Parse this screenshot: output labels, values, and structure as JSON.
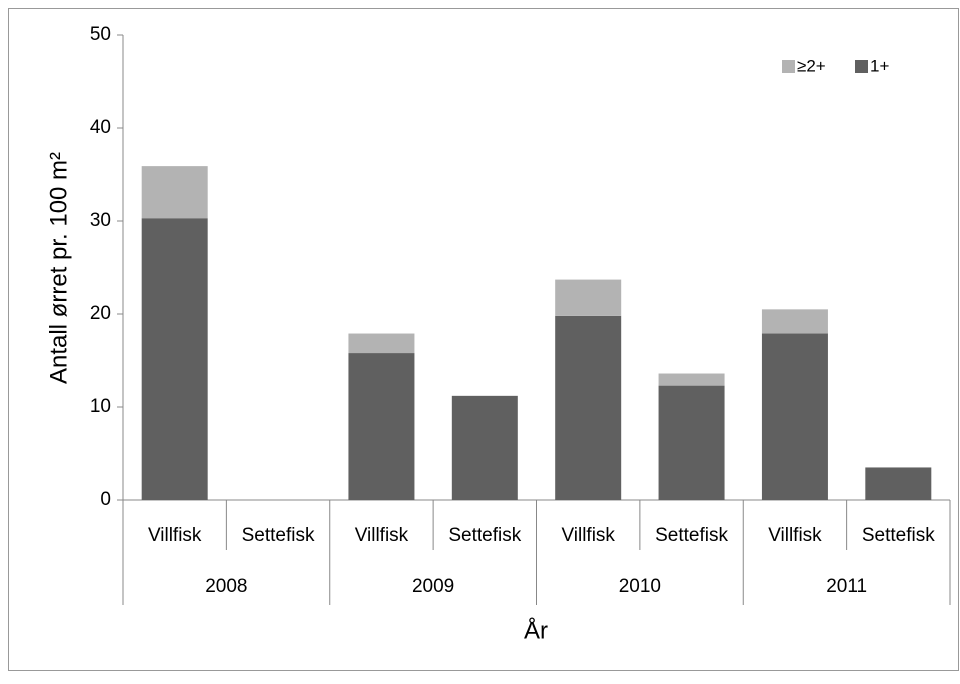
{
  "chart_data": {
    "type": "stacked-bar",
    "categories": [
      "Villfisk",
      "Settefisk",
      "Villfisk",
      "Settefisk",
      "Villfisk",
      "Settefisk",
      "Villfisk",
      "Settefisk"
    ],
    "groups": [
      "2008",
      "2009",
      "2010",
      "2011"
    ],
    "series": [
      {
        "name": "1+",
        "color": "#606060",
        "values": [
          30.3,
          0,
          15.8,
          11.2,
          19.8,
          12.3,
          17.9,
          3.5
        ]
      },
      {
        "name": "≥2+",
        "color": "#b3b3b3",
        "values": [
          5.6,
          0,
          2.1,
          0,
          3.9,
          1.3,
          2.6,
          0
        ]
      }
    ],
    "ylim": [
      0,
      50
    ],
    "yticks": [
      0,
      10,
      20,
      30,
      40,
      50
    ],
    "ylabel": "Antall ørret pr. 100 m²",
    "xlabel": "År",
    "legend": "top-right"
  }
}
